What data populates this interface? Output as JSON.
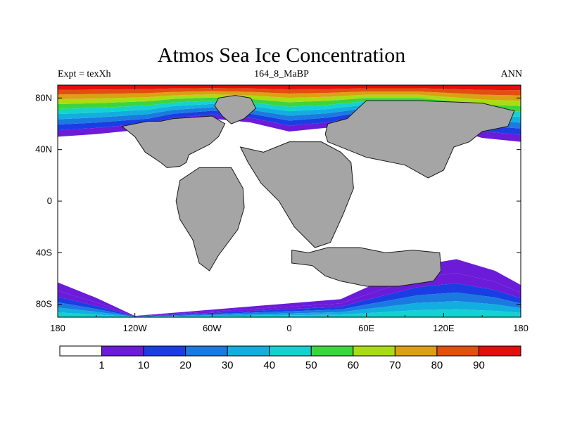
{
  "title": "Atmos Sea Ice Concentration",
  "subtitle_left": "Expt = texXh",
  "subtitle_center": "164_8_MaBP",
  "subtitle_right": "ANN",
  "colors": {
    "land": "#a5a5a5",
    "background": "#ffffff",
    "palette": [
      "#ffffff",
      "#6c1bd9",
      "#1a3ee3",
      "#1a7ae0",
      "#12aee0",
      "#14d2d0",
      "#3cd63c",
      "#aadc14",
      "#dca014",
      "#e0500e",
      "#e20e0e"
    ]
  },
  "chart_data": {
    "type": "heatmap",
    "title": "Atmos Sea Ice Concentration",
    "variable": "Sea ice concentration",
    "period": "ANN",
    "experiment": "Expt = texXh",
    "case": "164_8_MaBP",
    "x_range": [
      -180,
      180
    ],
    "y_range": [
      -90,
      90
    ],
    "x_ticks": [
      {
        "value": -180,
        "label": "180"
      },
      {
        "value": -120,
        "label": "120W"
      },
      {
        "value": -60,
        "label": "60W"
      },
      {
        "value": 0,
        "label": "0"
      },
      {
        "value": 60,
        "label": "60E"
      },
      {
        "value": 120,
        "label": "120E"
      },
      {
        "value": 180,
        "label": "180"
      }
    ],
    "y_ticks": [
      {
        "value": 80,
        "label": "80N"
      },
      {
        "value": 40,
        "label": "40N"
      },
      {
        "value": 0,
        "label": "0"
      },
      {
        "value": -40,
        "label": "40S"
      },
      {
        "value": -80,
        "label": "80S"
      }
    ],
    "levels": [
      1,
      10,
      20,
      30,
      40,
      50,
      60,
      70,
      80,
      90
    ],
    "colorbar_labels": [
      "1",
      "10",
      "20",
      "30",
      "40",
      "50",
      "60",
      "70",
      "80",
      "90"
    ],
    "northern_ice_edge": [
      {
        "lon": -180,
        "lat": 50
      },
      {
        "lon": -150,
        "lat": 52
      },
      {
        "lon": -110,
        "lat": 56
      },
      {
        "lon": -90,
        "lat": 61
      },
      {
        "lon": -60,
        "lat": 64
      },
      {
        "lon": -30,
        "lat": 61
      },
      {
        "lon": 0,
        "lat": 54
      },
      {
        "lon": 30,
        "lat": 57
      },
      {
        "lon": 60,
        "lat": 63
      },
      {
        "lon": 100,
        "lat": 63
      },
      {
        "lon": 130,
        "lat": 55
      },
      {
        "lon": 150,
        "lat": 49
      },
      {
        "lon": 180,
        "lat": 46
      }
    ],
    "southern_ice_edge": [
      {
        "lon": -180,
        "lat": -63
      },
      {
        "lon": -150,
        "lat": -75
      },
      {
        "lon": -120,
        "lat": -89
      },
      {
        "lon": 40,
        "lat": -76
      },
      {
        "lon": 60,
        "lat": -67
      },
      {
        "lon": 100,
        "lat": -50
      },
      {
        "lon": 130,
        "lat": -45
      },
      {
        "lon": 160,
        "lat": -54
      },
      {
        "lon": 180,
        "lat": -65
      }
    ],
    "land_regions": [
      {
        "name": "North America",
        "outline": [
          [
            -100,
            62
          ],
          [
            -90,
            64
          ],
          [
            -60,
            66
          ],
          [
            -50,
            60
          ],
          [
            -55,
            50
          ],
          [
            -62,
            44
          ],
          [
            -70,
            40
          ],
          [
            -78,
            36
          ],
          [
            -80,
            30
          ],
          [
            -85,
            27
          ],
          [
            -95,
            26
          ],
          [
            -100,
            30
          ],
          [
            -112,
            38
          ],
          [
            -120,
            50
          ],
          [
            -130,
            58
          ],
          [
            -110,
            62
          ]
        ]
      },
      {
        "name": "South America",
        "outline": [
          [
            -85,
            16
          ],
          [
            -70,
            26
          ],
          [
            -45,
            26
          ],
          [
            -36,
            10
          ],
          [
            -35,
            -5
          ],
          [
            -40,
            -22
          ],
          [
            -55,
            -42
          ],
          [
            -62,
            -54
          ],
          [
            -70,
            -48
          ],
          [
            -75,
            -30
          ],
          [
            -85,
            -14
          ],
          [
            -88,
            0
          ]
        ]
      },
      {
        "name": "Africa",
        "outline": [
          [
            -38,
            42
          ],
          [
            -20,
            38
          ],
          [
            0,
            46
          ],
          [
            25,
            46
          ],
          [
            40,
            38
          ],
          [
            48,
            30
          ],
          [
            50,
            10
          ],
          [
            42,
            -10
          ],
          [
            32,
            -32
          ],
          [
            20,
            -36
          ],
          [
            4,
            -20
          ],
          [
            -8,
            0
          ],
          [
            -22,
            14
          ],
          [
            -32,
            30
          ]
        ]
      },
      {
        "name": "Eurasia",
        "outline": [
          [
            28,
            52
          ],
          [
            30,
            60
          ],
          [
            45,
            64
          ],
          [
            60,
            78
          ],
          [
            100,
            78
          ],
          [
            150,
            76
          ],
          [
            175,
            70
          ],
          [
            170,
            58
          ],
          [
            160,
            56
          ],
          [
            150,
            54
          ],
          [
            140,
            46
          ],
          [
            128,
            42
          ],
          [
            120,
            24
          ],
          [
            108,
            18
          ],
          [
            90,
            28
          ],
          [
            60,
            34
          ],
          [
            45,
            40
          ],
          [
            30,
            46
          ]
        ]
      },
      {
        "name": "Greenland",
        "outline": [
          [
            -55,
            80
          ],
          [
            -42,
            82
          ],
          [
            -30,
            80
          ],
          [
            -26,
            72
          ],
          [
            -35,
            64
          ],
          [
            -45,
            60
          ],
          [
            -52,
            66
          ],
          [
            -58,
            74
          ]
        ]
      },
      {
        "name": "Antarctica-Australia",
        "outline": [
          [
            2,
            -38
          ],
          [
            15,
            -40
          ],
          [
            30,
            -36
          ],
          [
            55,
            -36
          ],
          [
            75,
            -40
          ],
          [
            96,
            -38
          ],
          [
            117,
            -40
          ],
          [
            118,
            -54
          ],
          [
            112,
            -62
          ],
          [
            85,
            -66
          ],
          [
            60,
            -66
          ],
          [
            40,
            -62
          ],
          [
            28,
            -58
          ],
          [
            18,
            -50
          ],
          [
            2,
            -48
          ]
        ]
      }
    ]
  },
  "map_icon": "land-mask"
}
